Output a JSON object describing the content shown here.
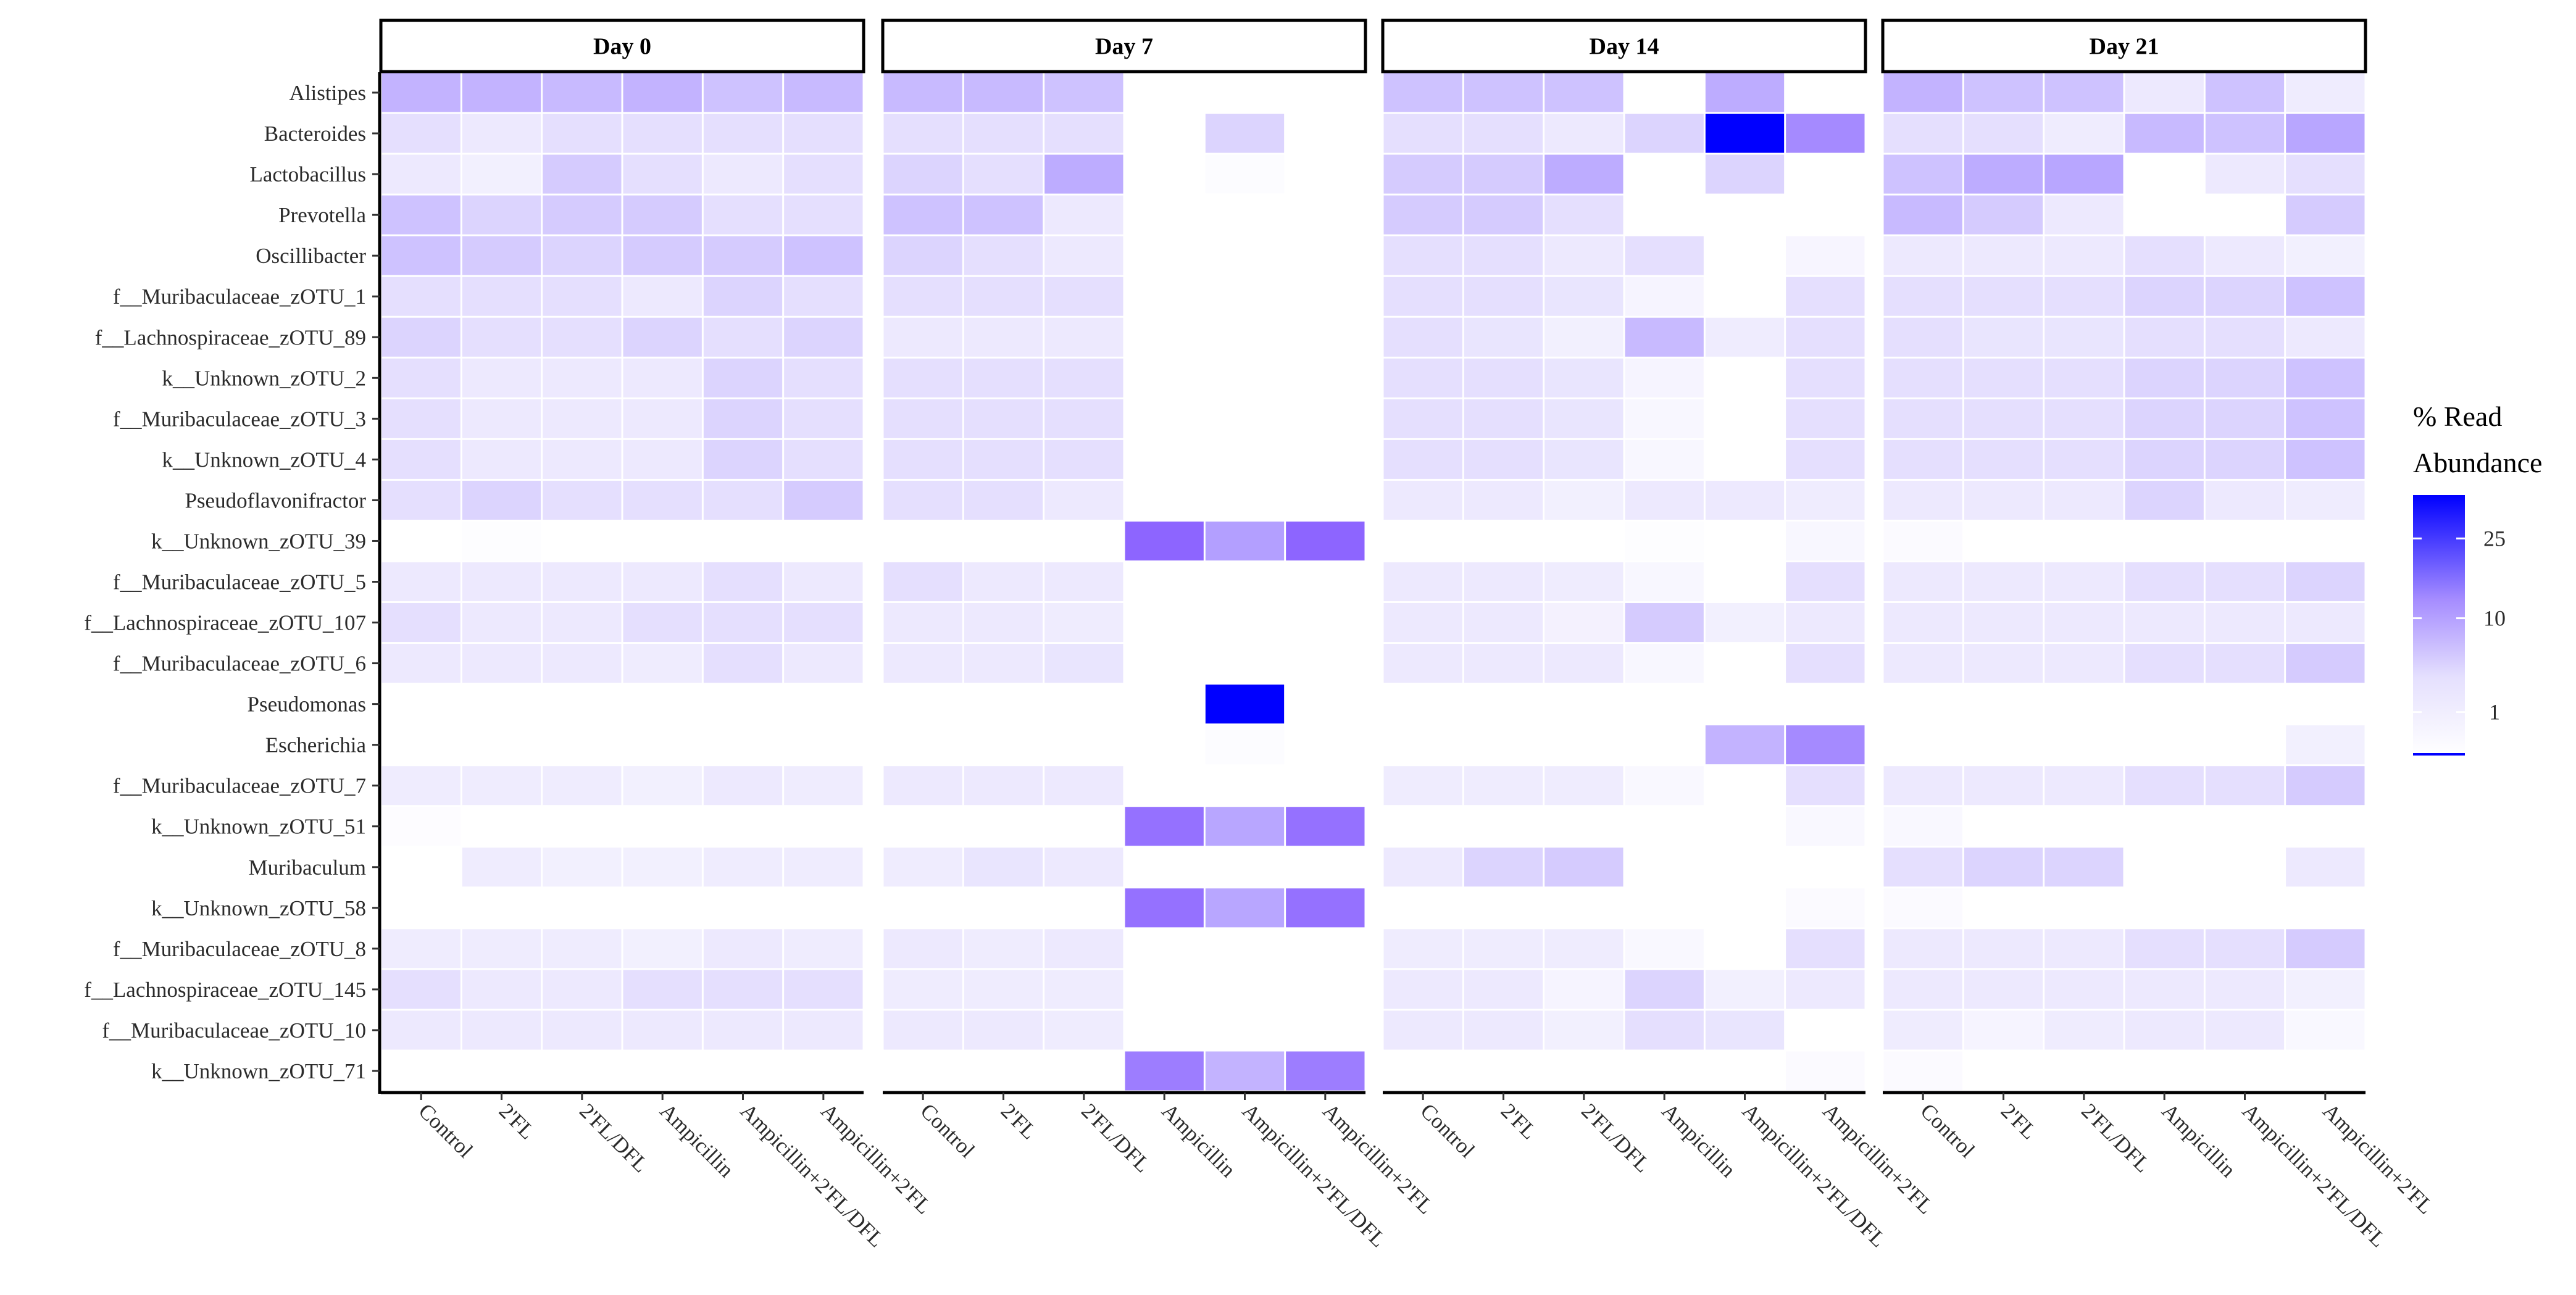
{
  "chart_data": {
    "type": "heatmap",
    "color_scale": {
      "low": "#ffffff",
      "high": "#0000ff",
      "transform": "sqrt",
      "min": 0,
      "max": 36
    },
    "legend": {
      "title_lines": [
        "% Read",
        "Abundance"
      ],
      "ticks": [
        1,
        10,
        25
      ]
    },
    "facets": [
      {
        "label": "Day 0",
        "columns": [
          "Control",
          "2'FL",
          "2'FL/DFL",
          "Ampicillin",
          "Ampicillin+2'FL/DFL",
          "Ampicillin+2'FL"
        ]
      },
      {
        "label": "Day 7",
        "columns": [
          "Control",
          "2'FL",
          "2'FL/DFL",
          "Ampicillin",
          "Ampicillin+2'FL/DFL",
          "Ampicillin+2'FL"
        ]
      },
      {
        "label": "Day 14",
        "columns": [
          "Control",
          "2'FL",
          "2'FL/DFL",
          "Ampicillin",
          "Ampicillin+2'FL/DFL",
          "Ampicillin+2'FL"
        ]
      },
      {
        "label": "Day 21",
        "columns": [
          "Control",
          "2'FL",
          "2'FL/DFL",
          "Ampicillin",
          "Ampicillin+2'FL/DFL",
          "Ampicillin+2'FL"
        ]
      }
    ],
    "rows": [
      "Alistipes",
      "Bacteroides",
      "Lactobacillus",
      "Prevotella",
      "Oscillibacter",
      "f__Muribaculaceae_zOTU_1",
      "f__Lachnospiraceae_zOTU_89",
      "k__Unknown_zOTU_2",
      "f__Muribaculaceae_zOTU_3",
      "k__Unknown_zOTU_4",
      "Pseudoflavonifractor",
      "k__Unknown_zOTU_39",
      "f__Muribaculaceae_zOTU_5",
      "f__Lachnospiraceae_zOTU_107",
      "f__Muribaculaceae_zOTU_6",
      "Pseudomonas",
      "Escherichia",
      "f__Muribaculaceae_zOTU_7",
      "k__Unknown_zOTU_51",
      "Muribaculum",
      "k__Unknown_zOTU_58",
      "f__Muribaculaceae_zOTU_8",
      "f__Lachnospiraceae_zOTU_145",
      "f__Muribaculaceae_zOTU_10",
      "k__Unknown_zOTU_71"
    ],
    "values": [
      [
        [
          8,
          8,
          7,
          8,
          6,
          7
        ],
        [
          3,
          2,
          3,
          3,
          3,
          3
        ],
        [
          2,
          1,
          5,
          3,
          2,
          3
        ],
        [
          6,
          4,
          5,
          5,
          3,
          3
        ],
        [
          6,
          5,
          4,
          5,
          5,
          6
        ],
        [
          3,
          3,
          3,
          2,
          4,
          3
        ],
        [
          4,
          3,
          3,
          4,
          3,
          4
        ],
        [
          3,
          2,
          2,
          2,
          4,
          3
        ],
        [
          3,
          2,
          2,
          2,
          4,
          3
        ],
        [
          3,
          2,
          2,
          2,
          4,
          3
        ],
        [
          3,
          4,
          3,
          3,
          3,
          5
        ],
        [
          0,
          0.02,
          0,
          0,
          0,
          0
        ],
        [
          2,
          2,
          2,
          2,
          3,
          2
        ],
        [
          3,
          2,
          2,
          3,
          3,
          3
        ],
        [
          2,
          2,
          2,
          1.5,
          3,
          2
        ],
        [
          0,
          0,
          0,
          0,
          0,
          0
        ],
        [
          0,
          0,
          0,
          0,
          0,
          0
        ],
        [
          1.5,
          1.5,
          1.5,
          1,
          2,
          1.5
        ],
        [
          0.03,
          0,
          0,
          0,
          0,
          0
        ],
        [
          0,
          1.5,
          1,
          1,
          1.5,
          1.5
        ],
        [
          0,
          0,
          0,
          0,
          0,
          0
        ],
        [
          1.5,
          1.5,
          1.5,
          1,
          2,
          1.5
        ],
        [
          3,
          2,
          2,
          3,
          3,
          3
        ],
        [
          2,
          2,
          2,
          2,
          2,
          2
        ],
        [
          0,
          0,
          0,
          0,
          0,
          0
        ]
      ],
      [
        [
          7,
          7,
          6,
          0,
          0,
          0
        ],
        [
          3,
          3,
          3,
          0,
          4,
          0
        ],
        [
          4,
          3,
          9,
          0,
          0.05,
          0
        ],
        [
          6,
          6,
          2,
          0,
          0,
          0
        ],
        [
          4,
          3,
          2,
          0,
          0,
          0
        ],
        [
          3,
          3,
          3,
          0,
          0,
          0
        ],
        [
          2,
          2,
          2,
          0,
          0,
          0
        ],
        [
          3,
          3,
          3,
          0,
          0,
          0
        ],
        [
          3,
          3,
          3,
          0,
          0,
          0
        ],
        [
          3,
          3,
          3,
          0,
          0,
          0
        ],
        [
          3,
          3,
          2,
          0,
          0,
          0
        ],
        [
          0,
          0,
          0,
          20,
          11,
          20
        ],
        [
          3,
          2,
          2,
          0,
          0,
          0
        ],
        [
          2,
          2,
          1.5,
          0,
          0,
          0
        ],
        [
          2,
          2,
          2.5,
          0,
          0,
          0
        ],
        [
          0,
          0,
          0,
          0,
          36,
          0
        ],
        [
          0,
          0,
          0,
          0,
          0.05,
          0
        ],
        [
          2,
          2,
          2,
          0,
          0,
          0
        ],
        [
          0,
          0,
          0,
          18,
          10,
          18
        ],
        [
          1.5,
          2.5,
          2,
          0,
          0,
          0
        ],
        [
          0,
          0,
          0,
          18,
          10,
          18
        ],
        [
          2,
          1.5,
          2,
          0,
          0,
          0
        ],
        [
          1.5,
          1.5,
          1.5,
          0,
          0,
          0
        ],
        [
          2,
          2,
          1.5,
          0,
          0,
          0
        ],
        [
          0,
          0,
          0,
          16,
          8,
          16
        ]
      ],
      [
        [
          6,
          6,
          6,
          0,
          9,
          0
        ],
        [
          3,
          3,
          2,
          4,
          36,
          14
        ],
        [
          5,
          5,
          9,
          0,
          4,
          0
        ],
        [
          5,
          5,
          3,
          0,
          0,
          0
        ],
        [
          3,
          3,
          2,
          3,
          0,
          0.4
        ],
        [
          3,
          3,
          2.5,
          0.5,
          0,
          3
        ],
        [
          3,
          2.5,
          1,
          7,
          1.5,
          3
        ],
        [
          3,
          3,
          2.5,
          0.5,
          0,
          3
        ],
        [
          3,
          3,
          2.5,
          0.3,
          0,
          3
        ],
        [
          3,
          3,
          2.5,
          0.3,
          0,
          3
        ],
        [
          2,
          2,
          1,
          2,
          2,
          1.5
        ],
        [
          0,
          0,
          0,
          0.02,
          0,
          0.3
        ],
        [
          2,
          2,
          1.5,
          0.3,
          0,
          3
        ],
        [
          2,
          2,
          0.8,
          5,
          1,
          2
        ],
        [
          2,
          2,
          2,
          0.3,
          0,
          3
        ],
        [
          0,
          0,
          0,
          0,
          0,
          0
        ],
        [
          0,
          0,
          0,
          0,
          8,
          14
        ],
        [
          1.5,
          1.5,
          1.5,
          0.2,
          0,
          3
        ],
        [
          0,
          0,
          0,
          0,
          0,
          0.2
        ],
        [
          2,
          4,
          5,
          0,
          0,
          0
        ],
        [
          0,
          0,
          0,
          0,
          0,
          0.1
        ],
        [
          1.5,
          1.5,
          1.5,
          0.2,
          0,
          3
        ],
        [
          2,
          2,
          0.5,
          4,
          1,
          2
        ],
        [
          2,
          2,
          1,
          3,
          2.5,
          0
        ],
        [
          0,
          0,
          0,
          0,
          0,
          0.1
        ]
      ],
      [
        [
          8,
          6,
          6,
          2,
          6,
          1.5
        ],
        [
          3,
          3,
          1.5,
          7,
          6,
          10
        ],
        [
          6,
          9,
          10,
          0,
          2,
          3
        ],
        [
          7,
          5,
          2,
          0,
          0,
          5
        ],
        [
          2,
          2,
          2,
          3,
          2,
          1
        ],
        [
          3,
          3,
          3,
          4,
          4,
          6
        ],
        [
          3,
          2.5,
          2.5,
          3,
          3,
          2
        ],
        [
          3,
          3,
          3,
          4,
          4,
          6
        ],
        [
          3,
          3,
          3,
          4,
          4,
          6
        ],
        [
          3,
          3,
          3,
          4,
          4,
          6
        ],
        [
          2,
          2,
          2,
          4,
          2,
          1.5
        ],
        [
          0.1,
          0,
          0,
          0,
          0,
          0
        ],
        [
          2,
          2,
          2,
          3,
          3,
          4
        ],
        [
          2,
          2,
          2,
          2,
          2,
          2
        ],
        [
          2,
          2,
          2,
          3,
          3,
          5
        ],
        [
          0,
          0,
          0,
          0,
          0,
          0
        ],
        [
          0,
          0,
          0,
          0,
          0,
          1
        ],
        [
          2,
          2,
          2,
          3,
          3,
          5
        ],
        [
          0.2,
          0,
          0,
          0,
          0,
          0
        ],
        [
          3,
          4,
          4,
          0,
          0,
          2
        ],
        [
          0.1,
          0,
          0,
          0,
          0,
          0
        ],
        [
          2,
          2,
          2,
          3,
          3,
          5
        ],
        [
          2,
          2,
          2,
          2,
          2,
          1
        ],
        [
          1.5,
          0.5,
          1.5,
          2,
          2,
          0.2
        ],
        [
          0.1,
          0,
          0,
          0,
          0,
          0
        ]
      ]
    ]
  }
}
